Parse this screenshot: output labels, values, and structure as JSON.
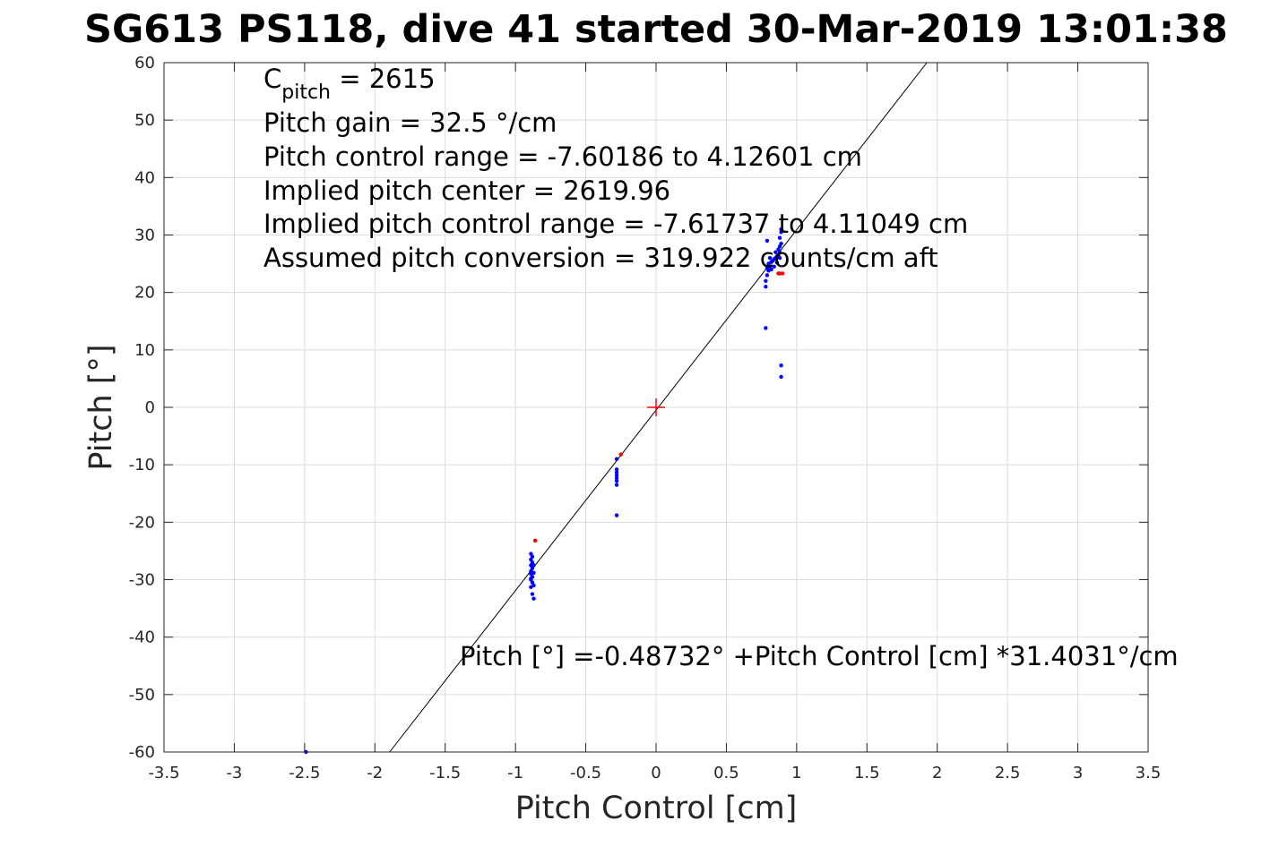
{
  "chart_data": {
    "type": "scatter",
    "title": "SG613 PS118, dive 41 started 30-Mar-2019 13:01:38",
    "xlabel": "Pitch Control [cm]",
    "ylabel": "Pitch [°]",
    "xlim": [
      -3.5,
      3.5
    ],
    "ylim": [
      -60,
      60
    ],
    "xticks": [
      -3.5,
      -3,
      -2.5,
      -2,
      -1.5,
      -1,
      -0.5,
      0,
      0.5,
      1,
      1.5,
      2,
      2.5,
      3,
      3.5
    ],
    "xtick_labels": [
      "-3.5",
      "-3",
      "-2.5",
      "-2",
      "-1.5",
      "-1",
      "-0.5",
      "0",
      "0.5",
      "1",
      "1.5",
      "2",
      "2.5",
      "3",
      "3.5"
    ],
    "yticks": [
      -60,
      -50,
      -40,
      -30,
      -20,
      -10,
      0,
      10,
      20,
      30,
      40,
      50,
      60
    ],
    "ytick_labels": [
      "-60",
      "-50",
      "-40",
      "-30",
      "-20",
      "-10",
      "0",
      "10",
      "20",
      "30",
      "40",
      "50",
      "60"
    ],
    "grid": true,
    "annotations": {
      "c_pitch_main": "C",
      "c_pitch_sub": "pitch",
      "c_pitch_value": " = 2615",
      "lines": [
        "Pitch gain = 32.5 °/cm",
        "Pitch control range = -7.60186 to 4.12601 cm",
        "Implied pitch center = 2619.96",
        "Implied pitch control range = -7.61737 to 4.11049 cm",
        "Assumed pitch conversion = 319.922 counts/cm aft"
      ],
      "fit_equation": "Pitch [°] =-0.48732° +Pitch Control [cm] *31.4031°/cm"
    },
    "fit_line": {
      "intercept": -0.48732,
      "slope": 31.4031,
      "color": "#000000"
    },
    "center_marker": {
      "x": 0,
      "y": 0,
      "color": "#ff0000"
    },
    "series": [
      {
        "color": "#0000ff",
        "points": [
          [
            -2.49,
            -60.0
          ],
          [
            -0.89,
            -25.5
          ],
          [
            -0.89,
            -26.5
          ],
          [
            -0.88,
            -27.0
          ],
          [
            -0.89,
            -27.5
          ],
          [
            -0.88,
            -28.0
          ],
          [
            -0.89,
            -28.5
          ],
          [
            -0.87,
            -28.8
          ],
          [
            -0.89,
            -29.0
          ],
          [
            -0.88,
            -29.5
          ],
          [
            -0.89,
            -30.0
          ],
          [
            -0.88,
            -30.5
          ],
          [
            -0.87,
            -31.0
          ],
          [
            -0.89,
            -31.3
          ],
          [
            -0.88,
            -32.5
          ],
          [
            -0.87,
            -33.3
          ],
          [
            -0.88,
            -26.0
          ],
          [
            -0.87,
            -27.5
          ],
          [
            -0.89,
            -29.8
          ],
          [
            -0.28,
            -9.0
          ],
          [
            -0.28,
            -10.8
          ],
          [
            -0.28,
            -11.3
          ],
          [
            -0.28,
            -11.8
          ],
          [
            -0.28,
            -12.3
          ],
          [
            -0.28,
            -12.8
          ],
          [
            -0.28,
            -13.5
          ],
          [
            -0.28,
            -18.8
          ],
          [
            0.78,
            13.8
          ],
          [
            0.78,
            21.0
          ],
          [
            0.78,
            22.0
          ],
          [
            0.79,
            23.0
          ],
          [
            0.8,
            23.8
          ],
          [
            0.79,
            24.2
          ],
          [
            0.81,
            24.5
          ],
          [
            0.8,
            25.0
          ],
          [
            0.82,
            25.3
          ],
          [
            0.83,
            25.5
          ],
          [
            0.84,
            25.8
          ],
          [
            0.85,
            26.0
          ],
          [
            0.86,
            26.3
          ],
          [
            0.87,
            26.5
          ],
          [
            0.88,
            27.0
          ],
          [
            0.87,
            27.5
          ],
          [
            0.88,
            28.0
          ],
          [
            0.89,
            28.5
          ],
          [
            0.88,
            29.5
          ],
          [
            0.89,
            30.5
          ],
          [
            0.89,
            31.0
          ],
          [
            0.79,
            29.0
          ],
          [
            0.82,
            24.0
          ],
          [
            0.84,
            24.5
          ],
          [
            0.86,
            25.2
          ],
          [
            0.88,
            26.0
          ],
          [
            0.85,
            27.0
          ],
          [
            0.81,
            26.0
          ],
          [
            0.89,
            7.3
          ],
          [
            0.89,
            5.3
          ]
        ]
      },
      {
        "color": "#ff0000",
        "points": [
          [
            -0.86,
            -23.2
          ],
          [
            -0.25,
            -8.2
          ],
          [
            0.87,
            23.3
          ],
          [
            0.9,
            23.3
          ],
          [
            0.88,
            23.3
          ]
        ]
      }
    ]
  }
}
